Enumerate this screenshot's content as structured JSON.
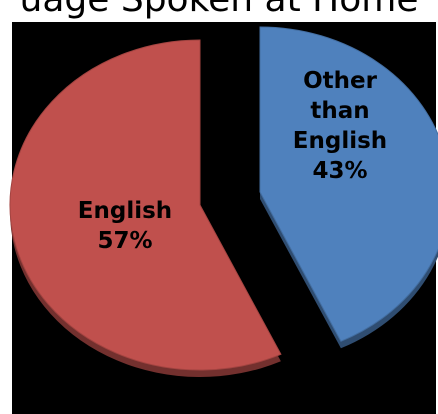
{
  "chart_data": {
    "type": "pie",
    "title": "uage Spoken at Home",
    "slices": [
      {
        "name": "Other than English",
        "value": 43,
        "color": "#4F81BD",
        "label_lines": [
          "Other",
          "than",
          "English",
          "43%"
        ]
      },
      {
        "name": "English",
        "value": 57,
        "color": "#C0504D",
        "label_lines": [
          "English",
          "57%"
        ]
      }
    ],
    "exploded": true,
    "three_d": true
  }
}
